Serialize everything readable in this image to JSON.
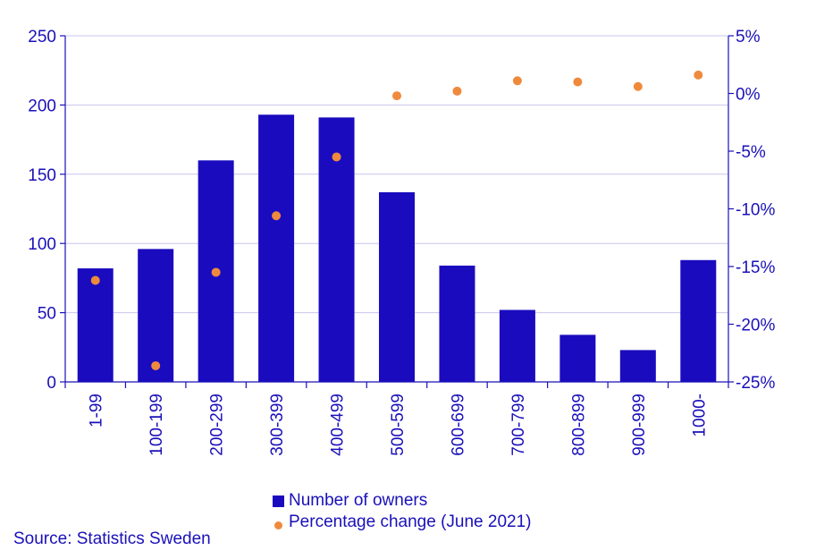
{
  "chart_data": {
    "type": "bar",
    "categories": [
      "1-99",
      "100-199",
      "200-299",
      "300-399",
      "400-499",
      "500-599",
      "600-699",
      "700-799",
      "800-899",
      "900-999",
      "1000-"
    ],
    "series": [
      {
        "name": "Number of owners",
        "type": "bar",
        "axis": "left",
        "values": [
          82,
          96,
          160,
          193,
          191,
          137,
          84,
          52,
          34,
          23,
          88
        ]
      },
      {
        "name": "Percentage change (June 2021)",
        "type": "scatter",
        "axis": "right",
        "values": [
          -16.2,
          -23.6,
          -15.5,
          -10.6,
          -5.5,
          -0.2,
          0.2,
          1.1,
          1.0,
          0.6,
          1.6
        ]
      }
    ],
    "y_left": {
      "min": 0,
      "max": 250,
      "ticks": [
        "0",
        "50",
        "100",
        "150",
        "200",
        "250"
      ],
      "grid": true
    },
    "y_right": {
      "min": -25,
      "max": 5,
      "ticks": [
        "-25%",
        "-20%",
        "-15%",
        "-10%",
        "-5%",
        "0%",
        "5%"
      ]
    },
    "legend_position": "bottom",
    "colors": {
      "bar": "#1a0bbf",
      "dot": "#ef8a3d",
      "text": "#1a10b8",
      "grid": "#c8c6ee"
    }
  },
  "legend": {
    "bar_label": "Number of owners",
    "dot_label": "Percentage change (June 2021)"
  },
  "source": "Source: Statistics Sweden"
}
